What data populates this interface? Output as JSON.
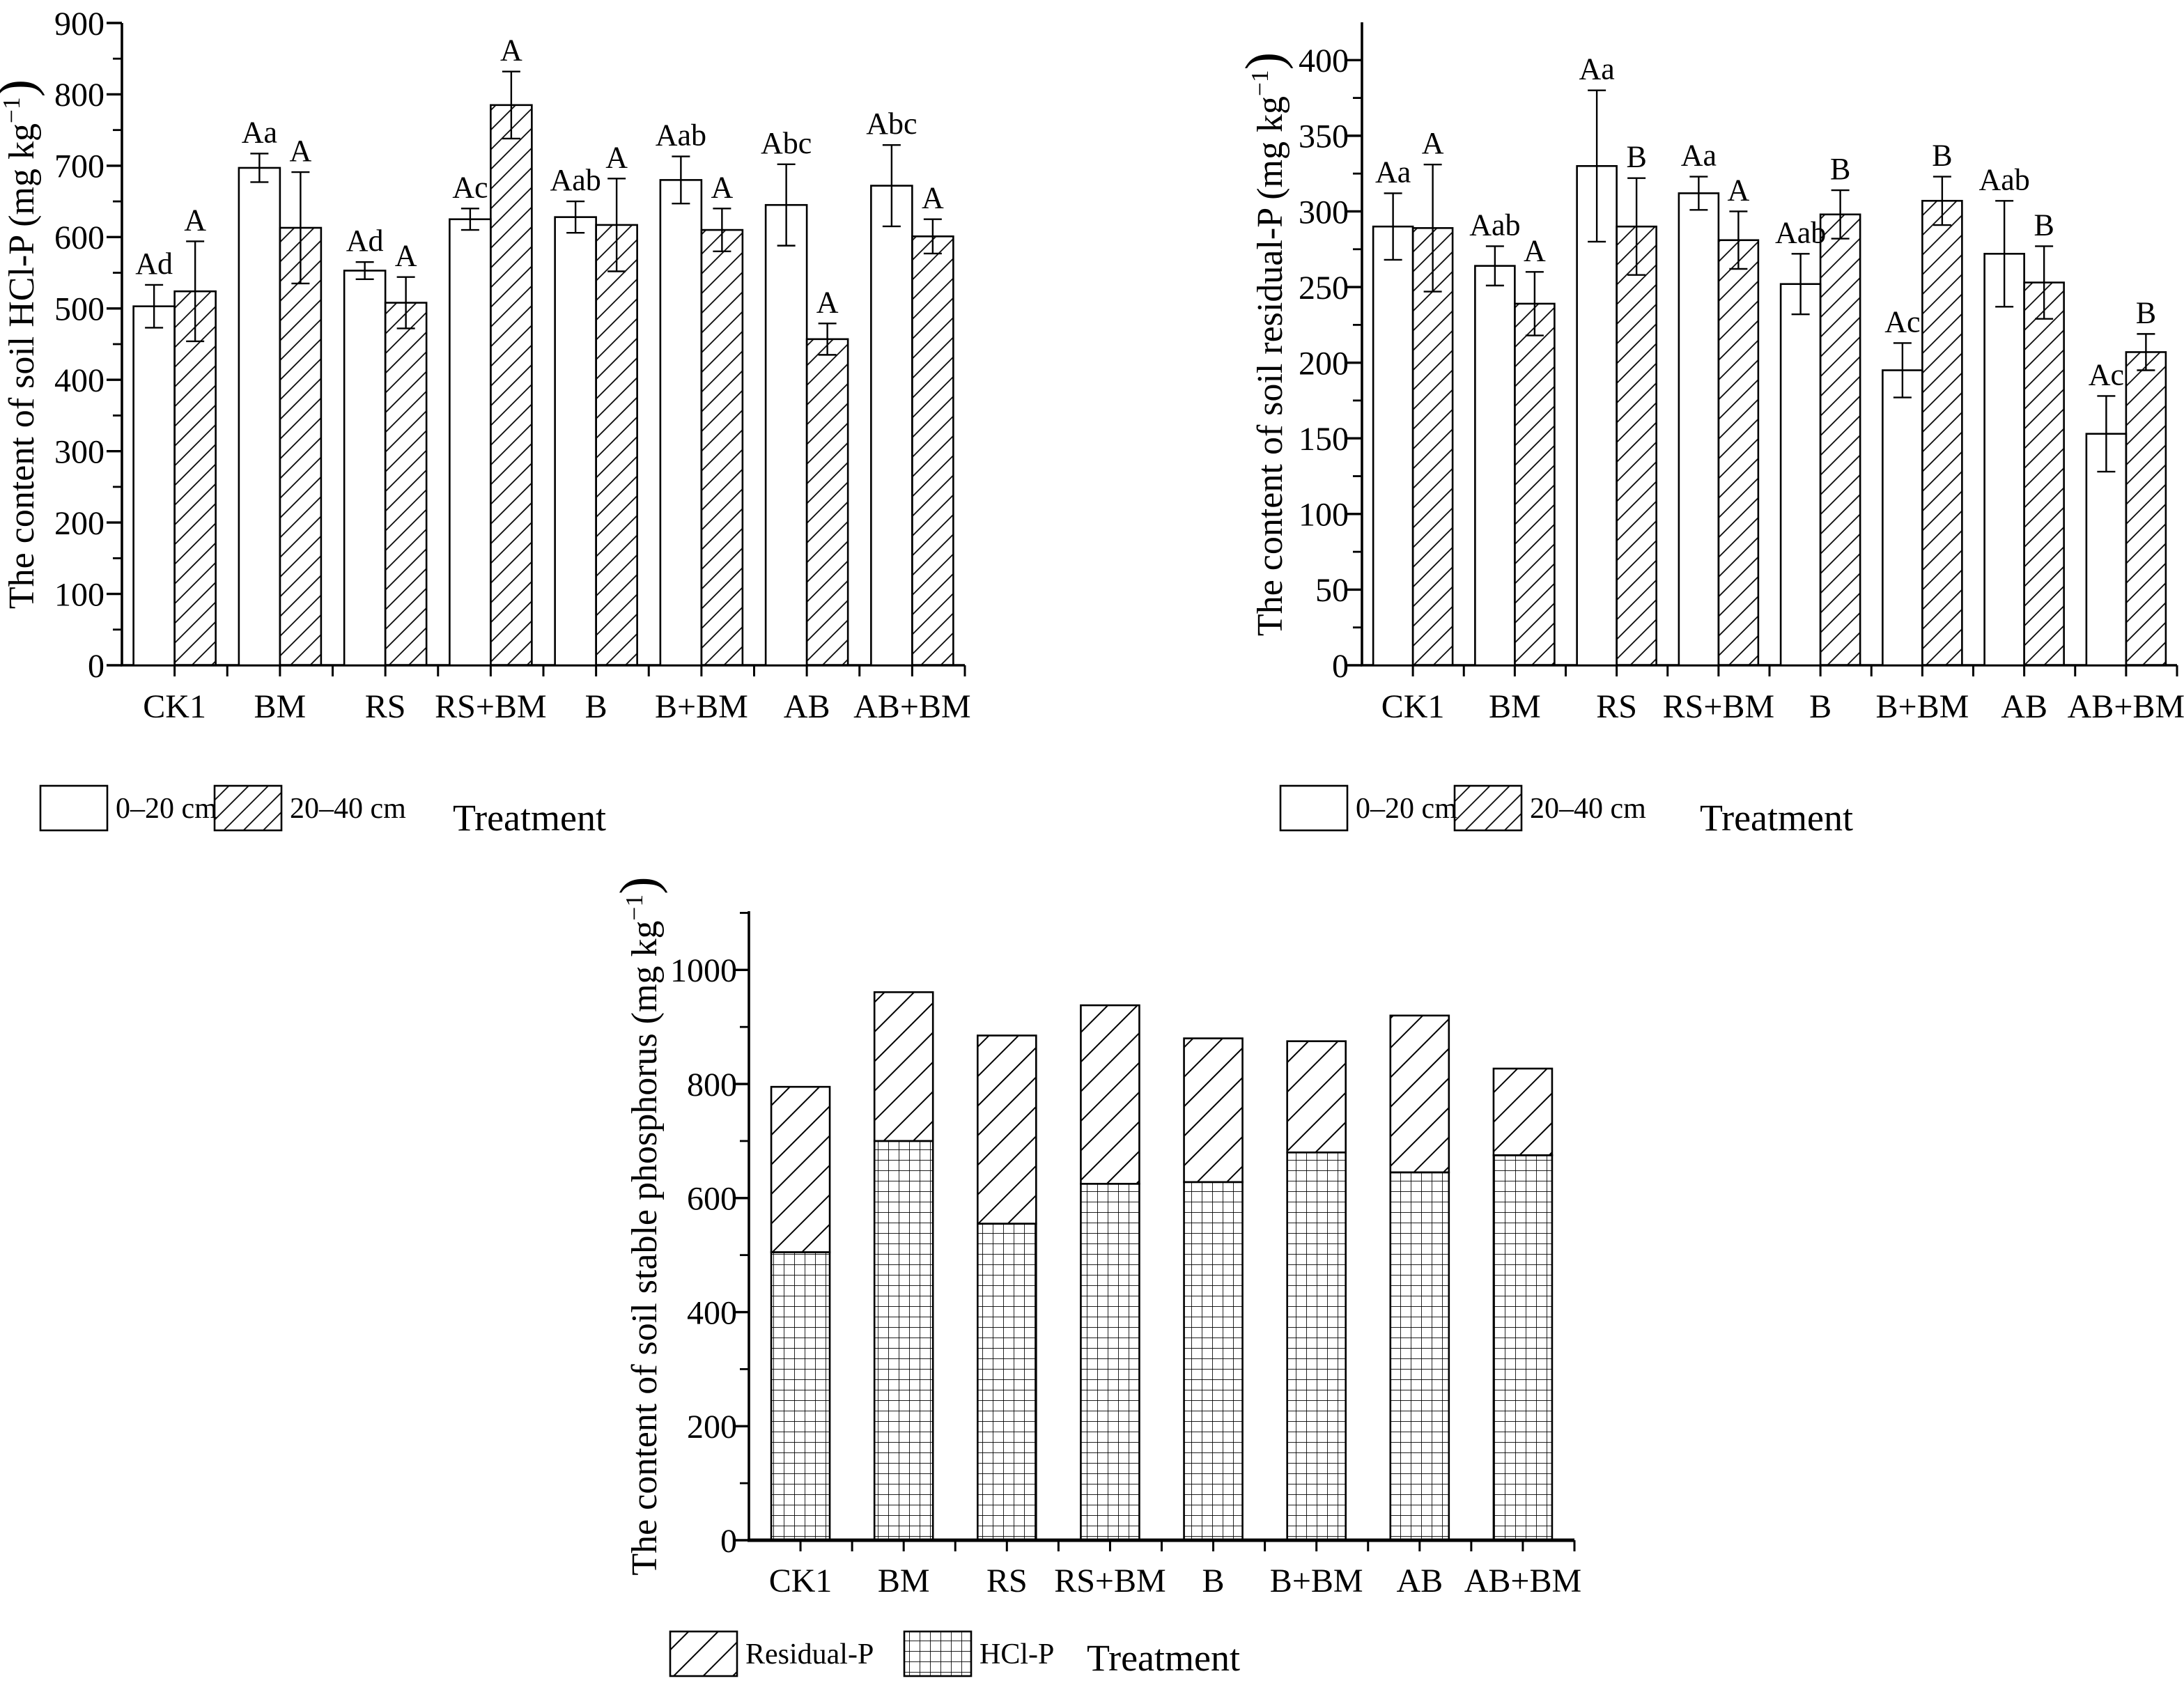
{
  "figure": {
    "background": "#ffffff",
    "ink_color": "#000000"
  },
  "chart_data": [
    {
      "id": "hcl-p",
      "type": "bar",
      "subtype": "grouped-with-error-bars",
      "ylabel": "The content of soil HCl-P (mg kg⁻¹)",
      "xlabel": "Treatment",
      "categories": [
        "CK1",
        "BM",
        "RS",
        "RS+BM",
        "B",
        "B+BM",
        "AB",
        "AB+BM"
      ],
      "ylim": [
        0,
        900
      ],
      "yticks": [
        0,
        100,
        200,
        300,
        400,
        500,
        600,
        700,
        800,
        900
      ],
      "ytick_minor": 50,
      "legend": [
        "0–20 cm",
        "20–40 cm"
      ],
      "legend_position": "bottom-left",
      "grid": "off",
      "series": [
        {
          "name": "0–20 cm",
          "pattern": "plain",
          "values": [
            503,
            697,
            553,
            625,
            628,
            680,
            645,
            672
          ],
          "errors": [
            30,
            20,
            12,
            15,
            22,
            33,
            57,
            57
          ],
          "letters": [
            "Ad",
            "Aa",
            "Ad",
            "Ac",
            "Aab",
            "Aab",
            "Abc",
            "Abc"
          ]
        },
        {
          "name": "20–40 cm",
          "pattern": "diagonal",
          "values": [
            524,
            613,
            508,
            785,
            617,
            610,
            457,
            601
          ],
          "errors": [
            70,
            78,
            36,
            47,
            65,
            30,
            22,
            24
          ],
          "letters": [
            "A",
            "A",
            "A",
            "A",
            "A",
            "A",
            "A",
            "A"
          ]
        }
      ]
    },
    {
      "id": "residual-p",
      "type": "bar",
      "subtype": "grouped-with-error-bars",
      "ylabel": "The content of soil residual-P (mg kg⁻¹)",
      "xlabel": "Treatment",
      "categories": [
        "CK1",
        "BM",
        "RS",
        "RS+BM",
        "B",
        "B+BM",
        "AB",
        "AB+BM"
      ],
      "ylim": [
        0,
        400
      ],
      "yticks": [
        0,
        50,
        100,
        150,
        200,
        250,
        300,
        350,
        400
      ],
      "ytick_minor": 25,
      "legend": [
        "0–20 cm",
        "20–40 cm"
      ],
      "legend_position": "bottom-left",
      "grid": "off",
      "series": [
        {
          "name": "0–20 cm",
          "pattern": "plain",
          "values": [
            290,
            264,
            330,
            312,
            252,
            195,
            272,
            153
          ],
          "errors": [
            22,
            13,
            50,
            11,
            20,
            18,
            35,
            25
          ],
          "letters": [
            "Aa",
            "Aab",
            "Aa",
            "Aa",
            "Aab",
            "Ac",
            "Aab",
            "Ac"
          ]
        },
        {
          "name": "20–40 cm",
          "pattern": "diagonal",
          "values": [
            289,
            239,
            290,
            281,
            298,
            307,
            253,
            207
          ],
          "errors": [
            42,
            21,
            32,
            19,
            16,
            16,
            24,
            12
          ],
          "letters": [
            "A",
            "A",
            "B",
            "A",
            "B",
            "B",
            "B",
            "B"
          ]
        }
      ]
    },
    {
      "id": "stable-p",
      "type": "bar",
      "subtype": "stacked",
      "ylabel": "The content of soil stable phosphorus (mg kg⁻¹)",
      "xlabel": "Treatment",
      "categories": [
        "CK1",
        "BM",
        "RS",
        "RS+BM",
        "B",
        "B+BM",
        "AB",
        "AB+BM"
      ],
      "ylim": [
        0,
        1100
      ],
      "yticks": [
        0,
        200,
        400,
        600,
        800,
        1000
      ],
      "ytick_minor": 100,
      "legend": [
        "Residual-P",
        "HCl-P"
      ],
      "legend_position": "bottom-left",
      "grid": "off",
      "series": [
        {
          "name": "HCl-P",
          "pattern": "grid",
          "values": [
            505,
            700,
            555,
            625,
            628,
            680,
            645,
            675
          ]
        },
        {
          "name": "Residual-P",
          "pattern": "diagonal",
          "values": [
            290,
            261,
            330,
            313,
            252,
            195,
            275,
            152
          ]
        }
      ],
      "totals": [
        795,
        961,
        885,
        938,
        880,
        875,
        920,
        827
      ]
    }
  ]
}
